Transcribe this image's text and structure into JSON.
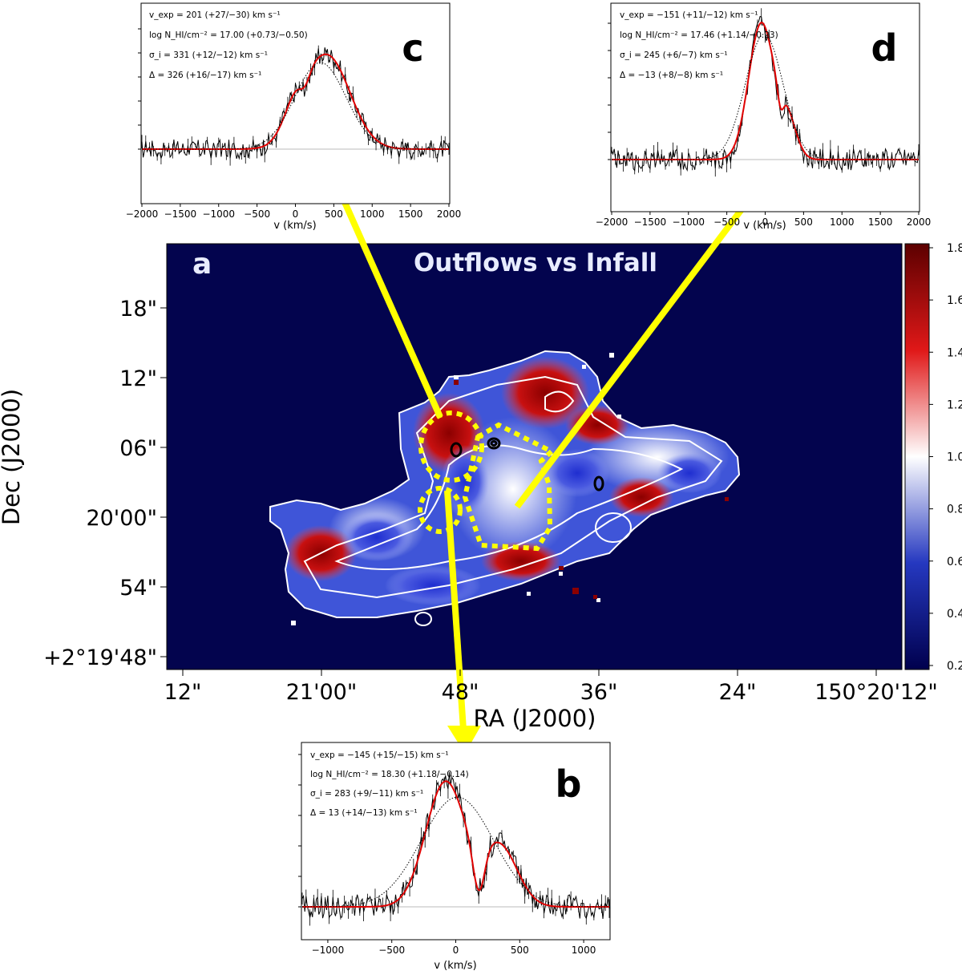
{
  "chart_data": [
    {
      "panel": "a",
      "type": "heatmap",
      "title": "Outflows vs Infall",
      "xlabel": "RA (J2000)",
      "ylabel": "Dec (J2000)",
      "xticks": [
        "12\"",
        "21'00\"",
        "48\"",
        "36\"",
        "24\"",
        "150°20'12\""
      ],
      "yticks": [
        "18\"",
        "12\"",
        "06\"",
        "20'00\"",
        "54\"",
        "+2°19'48\""
      ],
      "colorbar": {
        "range": [
          0.2,
          1.8
        ],
        "ticks": [
          "1.8",
          "1.6",
          "1.4",
          "1.2",
          "1.0",
          "0.8",
          "0.6",
          "0.4",
          "0.2"
        ],
        "colors": [
          "#00004d",
          "#2538c0",
          "#ffffff",
          "#e01818",
          "#5c0000"
        ]
      },
      "background_color": "#03044e",
      "marker_color": "#ffff00"
    },
    {
      "panel": "b",
      "type": "line",
      "xlabel": "v (km/s)",
      "xlim": [
        -1200,
        1200
      ],
      "xticks": [
        -1000,
        -500,
        0,
        500,
        1000
      ],
      "params": [
        "v_exp = −145 (+15/−15) km s⁻¹",
        "log N_HI/cm⁻² = 18.30 (+1.18/−0.14)",
        "σ_i = 283 (+9/−11) km s⁻¹",
        "Δ = 13 (+14/−13) km s⁻¹"
      ],
      "series": [
        {
          "name": "model",
          "color": "#e00000",
          "components": [
            {
              "center": -80,
              "sigma": 155,
              "amp": 0.82
            },
            {
              "center": 340,
              "sigma": 140,
              "amp": 0.4
            },
            {
              "center": 180,
              "sigma": 45,
              "amp": -0.3
            }
          ]
        },
        {
          "name": "intrinsic",
          "color": "#000000",
          "style": "dotted",
          "components": [
            {
              "center": 13,
              "sigma": 283,
              "amp": 0.72
            }
          ]
        }
      ]
    },
    {
      "panel": "c",
      "type": "line",
      "xlabel": "v (km/s)",
      "xlim": [
        -2000,
        2000
      ],
      "xticks": [
        -2000,
        -1500,
        -1000,
        -500,
        0,
        500,
        1000,
        1500,
        2000
      ],
      "params": [
        "v_exp = 201 (+27/−30) km s⁻¹",
        "log N_HI/cm⁻² = 17.00 (+0.73/−0.50)",
        "σ_i = 331 (+12/−12) km s⁻¹",
        "Δ = 326 (+16/−17) km s⁻¹"
      ],
      "series": [
        {
          "name": "model",
          "color": "#e00000",
          "components": [
            {
              "center": 410,
              "sigma": 300,
              "amp": 0.78
            },
            {
              "center": 0,
              "sigma": 160,
              "amp": 0.2
            },
            {
              "center": 120,
              "sigma": 70,
              "amp": -0.12
            }
          ]
        },
        {
          "name": "intrinsic",
          "color": "#000000",
          "style": "dotted",
          "components": [
            {
              "center": 326,
              "sigma": 331,
              "amp": 0.72
            }
          ]
        }
      ]
    },
    {
      "panel": "d",
      "type": "line",
      "xlabel": "v (km/s)",
      "xlim": [
        -2000,
        2000
      ],
      "xticks": [
        -2000,
        -1500,
        -1000,
        -500,
        0,
        500,
        1000,
        1500,
        2000
      ],
      "params": [
        "v_exp = −151 (+11/−12) km s⁻¹",
        "log N_HI/cm⁻² = 17.46 (+1.14/−0.23)",
        "σ_i = 245 (+6/−7) km s⁻¹",
        "Δ = −13 (+8/−8) km s⁻¹"
      ],
      "series": [
        {
          "name": "model",
          "color": "#e00000",
          "components": [
            {
              "center": -50,
              "sigma": 165,
              "amp": 1.0
            },
            {
              "center": 290,
              "sigma": 120,
              "amp": 0.28
            },
            {
              "center": 200,
              "sigma": 40,
              "amp": -0.15
            }
          ]
        },
        {
          "name": "intrinsic",
          "color": "#000000",
          "style": "dotted",
          "components": [
            {
              "center": -13,
              "sigma": 245,
              "amp": 0.92
            }
          ]
        }
      ]
    }
  ]
}
